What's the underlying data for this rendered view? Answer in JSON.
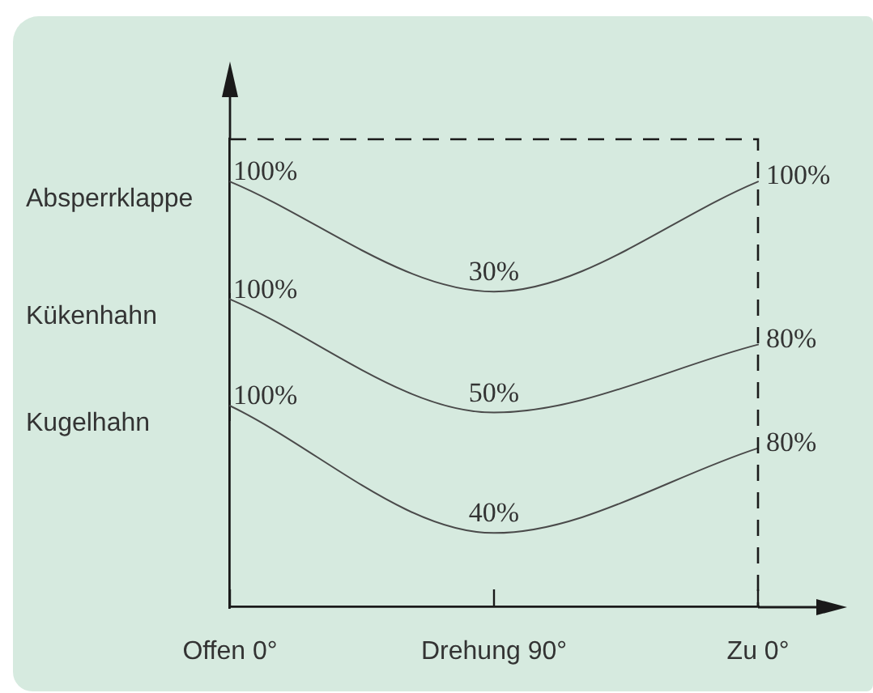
{
  "chart_data": [
    {
      "type": "line",
      "categories": [
        null,
        null,
        null
      ],
      "series": [
        {
          "name": "Absperrklappe",
          "color": "#4a4a4a",
          "values": [
            100,
            30,
            100
          ],
          "value_labels": [
            "100%",
            "30%",
            "100%"
          ]
        }
      ],
      "ylim": [
        27,
        127
      ],
      "tick_labels": false,
      "marker": "none",
      "line_style": "solid"
    },
    {
      "type": "line",
      "categories": [
        null,
        null,
        null
      ],
      "series": [
        {
          "name": "Kükenhahn",
          "color": "#4a4a4a",
          "values": [
            100,
            50,
            80
          ],
          "value_labels": [
            "100%",
            "50%",
            "80%"
          ]
        }
      ],
      "ylim": [
        47,
        102
      ],
      "tick_labels": false,
      "marker": "none",
      "line_style": "solid"
    },
    {
      "type": "line",
      "categories": [
        "Offen 0°",
        "Drehung 90°",
        "Zu 0°"
      ],
      "series": [
        {
          "name": "Kugelhahn",
          "color": "#4a4a4a",
          "values": [
            100,
            40,
            80
          ],
          "value_labels": [
            "100%",
            "40%",
            "80%"
          ]
        }
      ],
      "ylim": [
        5,
        102
      ],
      "tick_labels": "x",
      "marker": "none",
      "line_style": "solid"
    }
  ]
}
